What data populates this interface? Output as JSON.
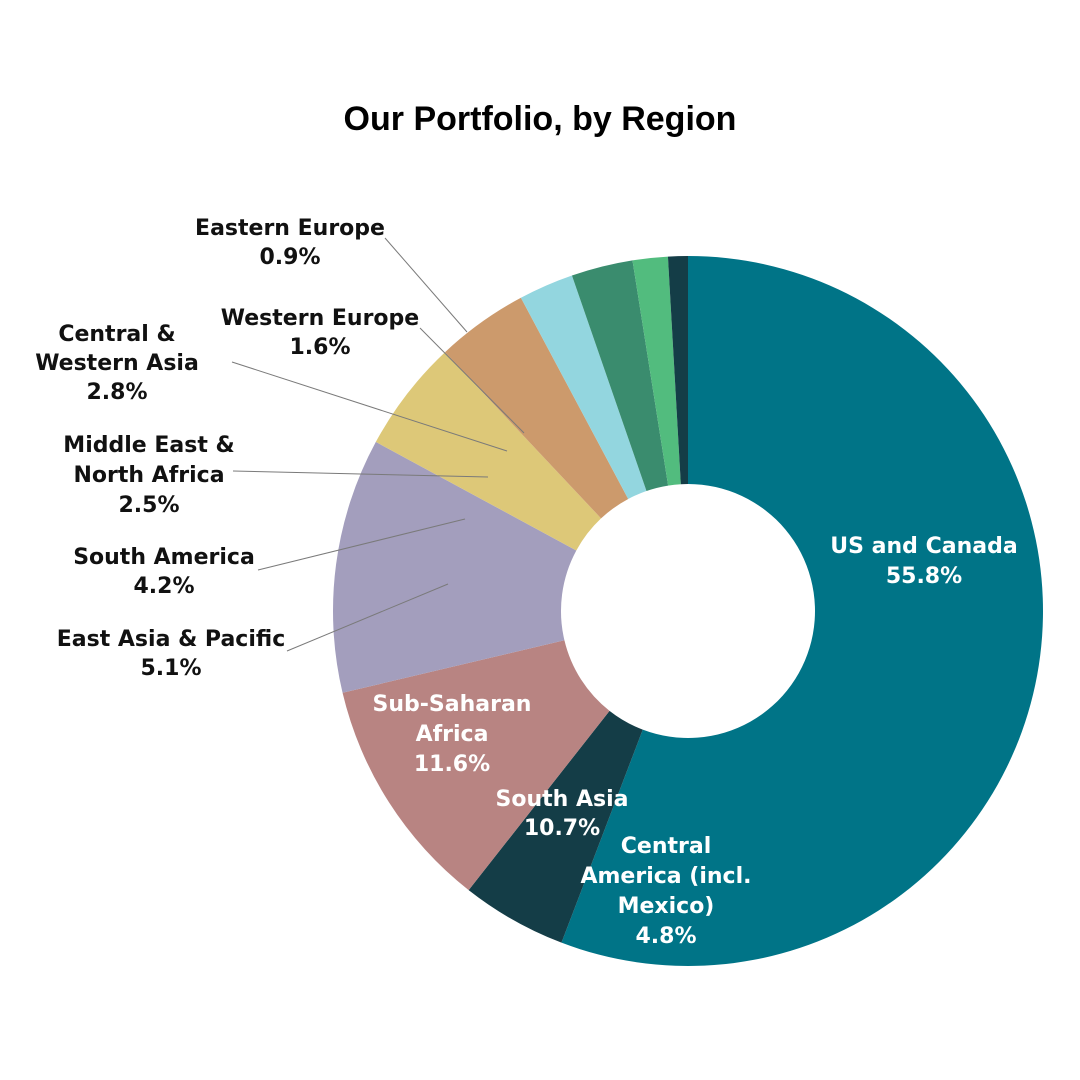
{
  "chart_data": {
    "type": "pie",
    "title": "Our Portfolio, by Region",
    "donut": true,
    "slices": [
      {
        "name": "US and Canada",
        "value": 55.8,
        "value_label": "55.8%",
        "color": "#007487",
        "label_lines": [
          "US and Canada"
        ]
      },
      {
        "name": "Central America (incl. Mexico)",
        "value": 4.8,
        "value_label": "4.8%",
        "color": "#143D47",
        "label_lines": [
          "Central",
          "America (incl.",
          "Mexico)"
        ]
      },
      {
        "name": "South Asia",
        "value": 10.7,
        "value_label": "10.7%",
        "color": "#B88482",
        "label_lines": [
          "South Asia"
        ]
      },
      {
        "name": "Sub-Saharan Africa",
        "value": 11.6,
        "value_label": "11.6%",
        "color": "#A39EBD",
        "label_lines": [
          "Sub-Saharan",
          "Africa"
        ]
      },
      {
        "name": "East Asia & Pacific",
        "value": 5.1,
        "value_label": "5.1%",
        "color": "#DDC878",
        "label_lines": [
          "East Asia & Pacific"
        ]
      },
      {
        "name": "South America",
        "value": 4.2,
        "value_label": "4.2%",
        "color": "#CC9A6C",
        "label_lines": [
          "South America"
        ]
      },
      {
        "name": "Middle East & North Africa",
        "value": 2.5,
        "value_label": "2.5%",
        "color": "#93D6DF",
        "label_lines": [
          "Middle East &",
          "North Africa"
        ]
      },
      {
        "name": "Central & Western Asia",
        "value": 2.8,
        "value_label": "2.8%",
        "color": "#3A8C6E",
        "label_lines": [
          "Central &",
          "Western Asia"
        ]
      },
      {
        "name": "Western Europe",
        "value": 1.6,
        "value_label": "1.6%",
        "color": "#52BC7E",
        "label_lines": [
          "Western Europe"
        ]
      },
      {
        "name": "Eastern Europe",
        "value": 0.9,
        "value_label": "0.9%",
        "color": "#143D47",
        "label_lines": [
          "Eastern Europe"
        ]
      }
    ]
  }
}
